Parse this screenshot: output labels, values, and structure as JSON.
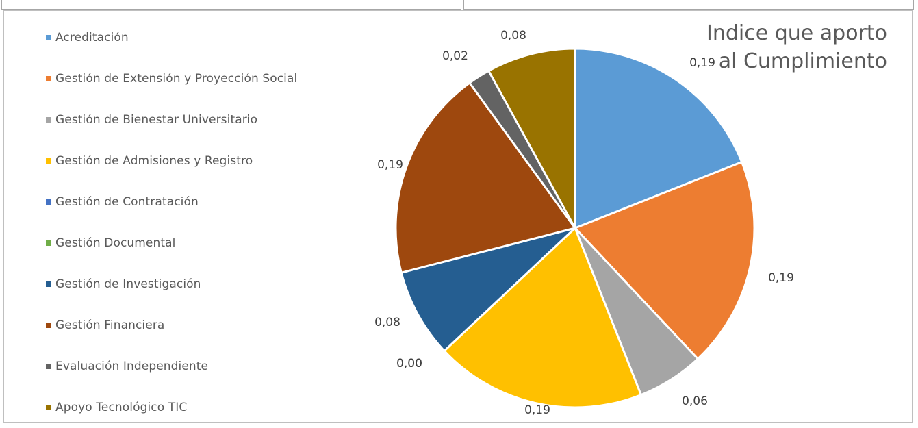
{
  "chart_data": {
    "type": "pie",
    "title": "Indice que aporto al Cumplimiento",
    "categories": [
      "Acreditación",
      "Gestión de Extensión y Proyección Social",
      "Gestión de Bienestar Universitario",
      "Gestión de Admisiones y Registro",
      "Gestión de Contratación",
      "Gestión Documental",
      "Gestión de Investigación",
      "Gestión Financiera",
      "Evaluación Independiente",
      "Apoyo Tecnológico TIC"
    ],
    "values": [
      0.19,
      0.19,
      0.06,
      0.19,
      0.0,
      0.0,
      0.08,
      0.19,
      0.02,
      0.08
    ],
    "value_labels": [
      "0,19",
      "0,19",
      "0,06",
      "0,19",
      "0,00",
      "0,00",
      "0,08",
      "0,19",
      "0,02",
      "0,08"
    ],
    "colors": [
      "#5b9bd5",
      "#ed7d31",
      "#a5a5a5",
      "#ffc000",
      "#4472c4",
      "#70ad47",
      "#255e91",
      "#9e480e",
      "#636363",
      "#997300"
    ],
    "legend_position": "left"
  }
}
